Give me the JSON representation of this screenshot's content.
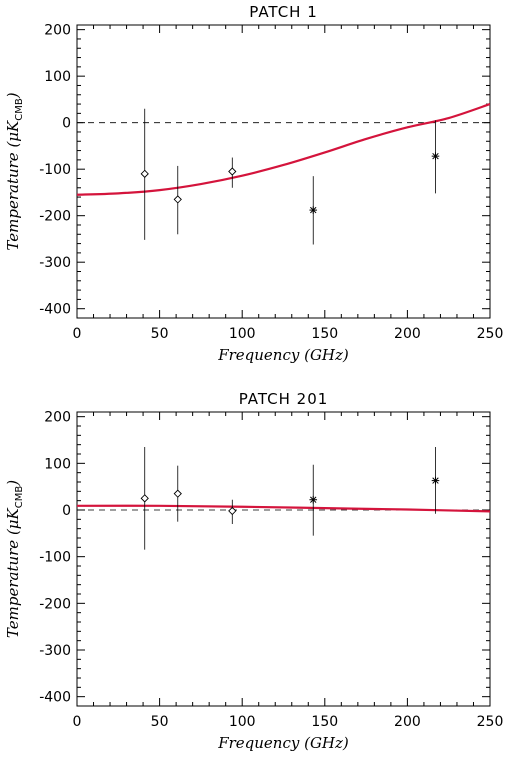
{
  "chart_data": [
    {
      "type": "scatter",
      "title": "PATCH   1",
      "xlabel": "Frequency (GHz)",
      "ylabel": "Temperature (μK",
      "ylabel_sub": "CMB",
      "ylabel_close": ")",
      "xlim": [
        0,
        250
      ],
      "ylim": [
        -420,
        210
      ],
      "xticks": [
        0,
        50,
        100,
        150,
        200,
        250
      ],
      "yticks": [
        -400,
        -300,
        -200,
        -100,
        0,
        100,
        200
      ],
      "zero_line": "dashed",
      "series": [
        {
          "marker": "diamond",
          "x": [
            41,
            61,
            94
          ],
          "y": [
            -110,
            -165,
            -105
          ],
          "yerr_low": [
            -252,
            -240,
            -140
          ],
          "yerr_high": [
            30,
            -93,
            -75
          ]
        },
        {
          "marker": "asterisk",
          "x": [
            143,
            217
          ],
          "y": [
            -188,
            -72
          ],
          "yerr_low": [
            -262,
            -152
          ],
          "yerr_high": [
            -115,
            5
          ]
        }
      ],
      "fit_curve": {
        "color": "#d4143c",
        "x": [
          0,
          25,
          50,
          75,
          100,
          125,
          150,
          175,
          200,
          225,
          250
        ],
        "y": [
          -155,
          -152,
          -145,
          -132,
          -114,
          -91,
          -64,
          -35,
          -10,
          10,
          40
        ]
      }
    },
    {
      "type": "scatter",
      "title": "PATCH   201",
      "xlabel": "Frequency (GHz)",
      "ylabel": "Temperature (μK",
      "ylabel_sub": "CMB",
      "ylabel_close": ")",
      "xlim": [
        0,
        250
      ],
      "ylim": [
        -420,
        210
      ],
      "xticks": [
        0,
        50,
        100,
        150,
        200,
        250
      ],
      "yticks": [
        -400,
        -300,
        -200,
        -100,
        0,
        100,
        200
      ],
      "zero_line": "dashed",
      "series": [
        {
          "marker": "diamond",
          "x": [
            41,
            61,
            94
          ],
          "y": [
            25,
            35,
            -2
          ],
          "yerr_low": [
            -85,
            -25,
            -30
          ],
          "yerr_high": [
            135,
            95,
            22
          ]
        },
        {
          "marker": "asterisk",
          "x": [
            143,
            217
          ],
          "y": [
            22,
            63
          ],
          "yerr_low": [
            -55,
            -8
          ],
          "yerr_high": [
            97,
            135
          ]
        }
      ],
      "fit_curve": {
        "color": "#d4143c",
        "x": [
          0,
          50,
          100,
          150,
          200,
          250
        ],
        "y": [
          9,
          9,
          7,
          4,
          1,
          -3
        ]
      }
    }
  ]
}
